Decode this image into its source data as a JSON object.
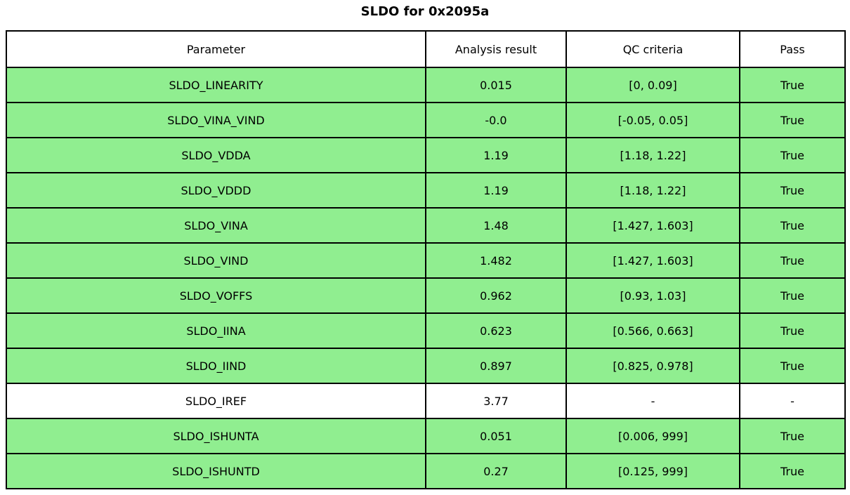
{
  "chart_data": {
    "type": "table",
    "title": "SLDO for 0x2095a",
    "columns": [
      "Parameter",
      "Analysis result",
      "QC criteria",
      "Pass"
    ],
    "rows": [
      {
        "parameter": "SLDO_LINEARITY",
        "result": "0.015",
        "criteria": "[0, 0.09]",
        "pass": "True",
        "highlight": true
      },
      {
        "parameter": "SLDO_VINA_VIND",
        "result": "-0.0",
        "criteria": "[-0.05, 0.05]",
        "pass": "True",
        "highlight": true
      },
      {
        "parameter": "SLDO_VDDA",
        "result": "1.19",
        "criteria": "[1.18, 1.22]",
        "pass": "True",
        "highlight": true
      },
      {
        "parameter": "SLDO_VDDD",
        "result": "1.19",
        "criteria": "[1.18, 1.22]",
        "pass": "True",
        "highlight": true
      },
      {
        "parameter": "SLDO_VINA",
        "result": "1.48",
        "criteria": "[1.427, 1.603]",
        "pass": "True",
        "highlight": true
      },
      {
        "parameter": "SLDO_VIND",
        "result": "1.482",
        "criteria": "[1.427, 1.603]",
        "pass": "True",
        "highlight": true
      },
      {
        "parameter": "SLDO_VOFFS",
        "result": "0.962",
        "criteria": "[0.93, 1.03]",
        "pass": "True",
        "highlight": true
      },
      {
        "parameter": "SLDO_IINA",
        "result": "0.623",
        "criteria": "[0.566, 0.663]",
        "pass": "True",
        "highlight": true
      },
      {
        "parameter": "SLDO_IIND",
        "result": "0.897",
        "criteria": "[0.825, 0.978]",
        "pass": "True",
        "highlight": true
      },
      {
        "parameter": "SLDO_IREF",
        "result": "3.77",
        "criteria": "-",
        "pass": "-",
        "highlight": false
      },
      {
        "parameter": "SLDO_ISHUNTA",
        "result": "0.051",
        "criteria": "[0.006, 999]",
        "pass": "True",
        "highlight": true
      },
      {
        "parameter": "SLDO_ISHUNTD",
        "result": "0.27",
        "criteria": "[0.125, 999]",
        "pass": "True",
        "highlight": true
      }
    ],
    "layout": {
      "legend": "none",
      "grid": "full-cell-borders"
    },
    "colors": {
      "pass_row_background": "#90ee90",
      "default_row_background": "#ffffff",
      "border": "#000000",
      "text": "#000000"
    }
  }
}
